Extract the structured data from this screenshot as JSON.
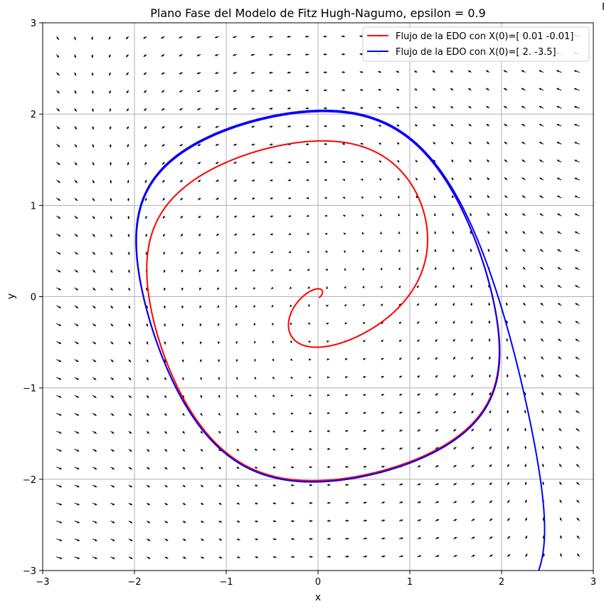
{
  "chart_data": {
    "type": "line",
    "title": "Plano Fase del Modelo de Fitz Hugh-Nagumo, epsilon = 0.9",
    "xlabel": "x",
    "ylabel": "y",
    "xlim": [
      -3,
      3
    ],
    "ylim": [
      -3,
      3
    ],
    "xticks": [
      -3,
      -2,
      -1,
      0,
      1,
      2,
      3
    ],
    "yticks": [
      -3,
      -2,
      -1,
      0,
      1,
      2,
      3
    ],
    "xtick_labels": [
      "−3",
      "−2",
      "−1",
      "0",
      "1",
      "2",
      "3"
    ],
    "ytick_labels": [
      "−3",
      "−2",
      "−1",
      "0",
      "1",
      "2",
      "3"
    ],
    "grid": true,
    "legend_position": "top-right",
    "truncated_label": "F",
    "series": [
      {
        "name": "Flujo de la EDO con X(0)=[ 0.01 -0.01]",
        "color": "#ff0000",
        "initial": [
          0.01,
          -0.01
        ]
      },
      {
        "name": "Flujo de la EDO con X(0)=[ 2.  -3.5]",
        "color": "#0000ff",
        "initial": [
          2.0,
          -3.5
        ]
      }
    ],
    "vector_field": {
      "model": "fitzhugh-nagumo",
      "epsilon": 0.9,
      "grid_range": [
        -2.85,
        2.85
      ],
      "grid_count": 30,
      "arrow_color": "#000000"
    }
  }
}
